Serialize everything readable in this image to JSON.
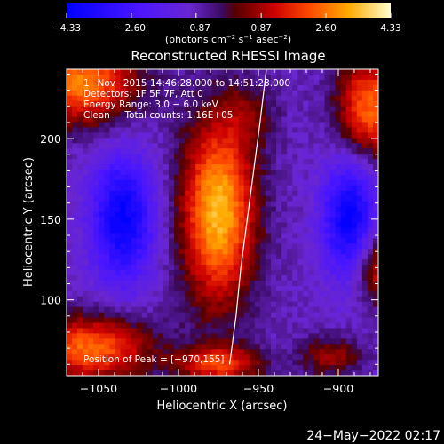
{
  "chart_data": {
    "type": "heatmap",
    "title": "Reconstructed RHESSI Image",
    "xlabel": "Heliocentric X (arcsec)",
    "ylabel": "Heliocentric Y (arcsec)",
    "xlim": [
      -1070,
      -875
    ],
    "ylim": [
      53,
      243
    ],
    "xticks": [
      -1050,
      -1000,
      -950,
      -900
    ],
    "xtick_labels": [
      "−1050",
      "−1000",
      "−950",
      "−900"
    ],
    "yticks": [
      100,
      150,
      200
    ],
    "ytick_labels": [
      "100",
      "150",
      "200"
    ],
    "colorbar": {
      "min": -4.33,
      "max": 4.33,
      "ticks": [
        -4.33,
        -2.6,
        -0.87,
        0.87,
        2.6,
        4.33
      ],
      "tick_labels": [
        "−4.33",
        "−2.60",
        "−0.87",
        "0.87",
        "2.60",
        "4.33"
      ],
      "unit_main": "(photons cm",
      "unit_sup1": "−2",
      "unit_mid": " s",
      "unit_sup2": "−1",
      "unit_mid2": " asec",
      "unit_sup3": "−2",
      "unit_end": ")"
    },
    "annotations": [
      "1−Nov−2015 14:46:28.000 to 14:51:28.000",
      "Detectors: 1F 5F 7F, Att 0",
      "Energy Range: 3.0 − 6.0 keV",
      "Clean     Total counts: 1.16E+05"
    ],
    "peak_label": "Position of Peak = [−970,155]",
    "peak": [
      -970,
      155
    ],
    "sources": [
      {
        "x": -975,
        "y": 155,
        "amp": 4.33,
        "sx": 16,
        "sy": 40
      },
      {
        "x": -1035,
        "y": 150,
        "amp": -3.3,
        "sx": 14,
        "sy": 28
      },
      {
        "x": -893,
        "y": 150,
        "amp": -3.3,
        "sx": 12,
        "sy": 26
      },
      {
        "x": -1060,
        "y": 235,
        "amp": 3.6,
        "sx": 24,
        "sy": 18
      },
      {
        "x": -880,
        "y": 220,
        "amp": 3.4,
        "sx": 14,
        "sy": 22
      },
      {
        "x": -875,
        "y": 120,
        "amp": 2.4,
        "sx": 10,
        "sy": 16
      },
      {
        "x": -1055,
        "y": 70,
        "amp": 3.4,
        "sx": 26,
        "sy": 14
      },
      {
        "x": -975,
        "y": 60,
        "amp": 2.8,
        "sx": 18,
        "sy": 8
      },
      {
        "x": -905,
        "y": 65,
        "amp": 1.6,
        "sx": 14,
        "sy": 9
      },
      {
        "x": -955,
        "y": 215,
        "amp": 1.0,
        "sx": 12,
        "sy": 14
      }
    ],
    "limb_curve": [
      [
        -968,
        60
      ],
      [
        -964,
        90
      ],
      [
        -961,
        120
      ],
      [
        -957,
        150
      ],
      [
        -953,
        180
      ],
      [
        -949,
        210
      ],
      [
        -945,
        243
      ]
    ]
  },
  "footer": {
    "timestamp": "24−May−2022 02:17"
  }
}
